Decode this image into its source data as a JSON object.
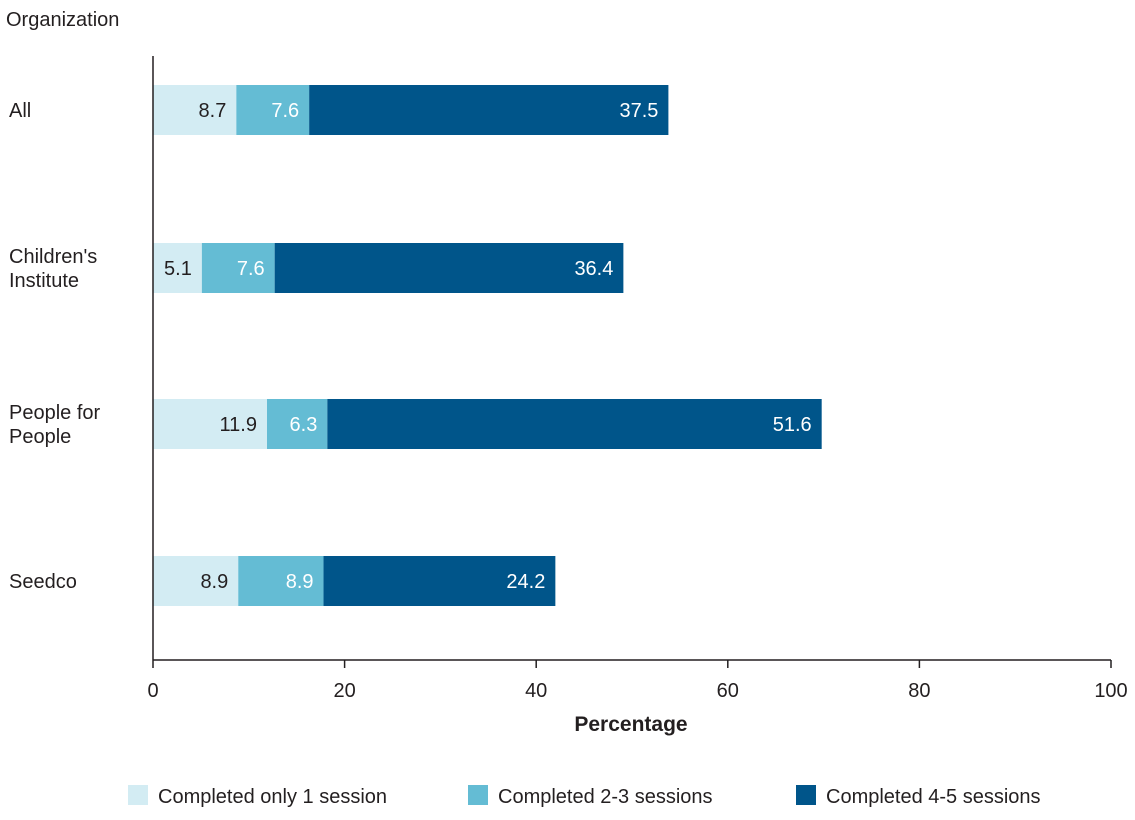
{
  "chart_data": {
    "type": "bar",
    "orientation": "horizontal",
    "stacked": true,
    "title": "",
    "ylabel": "Organization",
    "xlabel": "Percentage",
    "xlim": [
      0,
      100
    ],
    "xticks": [
      0,
      20,
      40,
      60,
      80,
      100
    ],
    "grid": false,
    "legend_position": "bottom",
    "categories": [
      [
        "All"
      ],
      [
        "Children's",
        "Institute"
      ],
      [
        "People for",
        "People"
      ],
      [
        "Seedco"
      ]
    ],
    "series": [
      {
        "name": "Completed only 1 session",
        "color": "#d3ecf3",
        "label_color": "#231f20",
        "values": [
          8.7,
          5.1,
          11.9,
          8.9
        ]
      },
      {
        "name": "Completed 2-3 sessions",
        "color": "#64bcd4",
        "label_color": "#ffffff",
        "values": [
          7.6,
          7.6,
          6.3,
          8.9
        ]
      },
      {
        "name": "Completed 4-5 sessions",
        "color": "#00558a",
        "label_color": "#ffffff",
        "values": [
          37.5,
          36.4,
          51.6,
          24.2
        ]
      }
    ]
  }
}
